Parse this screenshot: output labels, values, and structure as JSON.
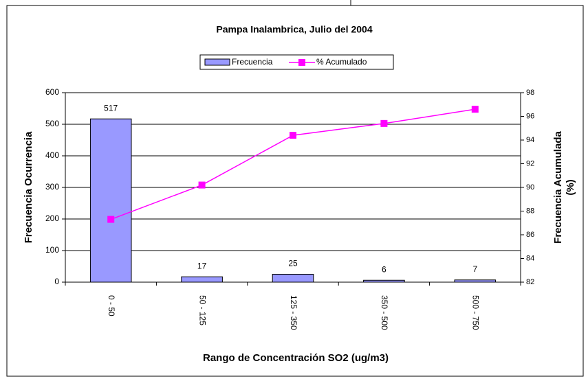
{
  "chart_data": {
    "type": "bar_line",
    "title": "Pampa Inalambrica, Julio del 2004",
    "x_label": "Rango de Concentración SO2 (ug/m3)",
    "y_label": "Frecuencia Ocurrencia",
    "y2_label": [
      "Frecuencia Acumulada",
      "(%)"
    ],
    "categories": [
      "0 - 50",
      "50 - 125",
      "125 - 350",
      "350 - 500",
      "500 - 750"
    ],
    "series": [
      {
        "name": "Frecuencia",
        "type": "bar",
        "color": "#9999ff",
        "values": [
          517,
          17,
          25,
          6,
          7
        ]
      },
      {
        "name": "% Acumulado",
        "type": "line",
        "color": "#ff00ff",
        "axis": "y2",
        "values": [
          87.3,
          90.2,
          94.4,
          95.4,
          96.6
        ]
      }
    ],
    "ylim": [
      0,
      600
    ],
    "yticks": [
      0,
      100,
      200,
      300,
      400,
      500,
      600
    ],
    "y2lim": [
      82,
      98
    ],
    "y2ticks": [
      82,
      84,
      86,
      88,
      90,
      92,
      94,
      96,
      98
    ],
    "grid": true,
    "legend": "top"
  }
}
